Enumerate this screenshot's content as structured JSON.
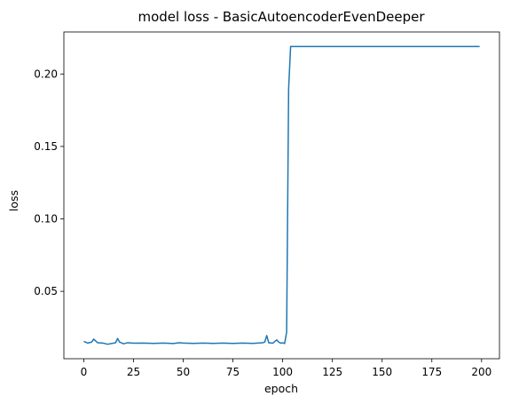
{
  "chart_data": {
    "type": "line",
    "title": "model loss - BasicAutoencoderEvenDeeper",
    "xlabel": "epoch",
    "ylabel": "loss",
    "xlim": [
      -10,
      209
    ],
    "ylim": [
      0.0035,
      0.229
    ],
    "x_ticks": [
      0,
      25,
      50,
      75,
      100,
      125,
      150,
      175,
      200
    ],
    "y_ticks": [
      0.05,
      0.1,
      0.15,
      0.2
    ],
    "y_tick_labels": [
      "0.05",
      "0.10",
      "0.15",
      "0.20"
    ],
    "grid": false,
    "legend": "none",
    "series": [
      {
        "color": "#1f77b4",
        "points": [
          [
            0,
            0.0155
          ],
          [
            2,
            0.0143
          ],
          [
            4,
            0.015
          ],
          [
            5,
            0.017
          ],
          [
            7,
            0.0145
          ],
          [
            10,
            0.0142
          ],
          [
            12,
            0.0135
          ],
          [
            14,
            0.014
          ],
          [
            16,
            0.0145
          ],
          [
            17,
            0.0175
          ],
          [
            18,
            0.015
          ],
          [
            20,
            0.0138
          ],
          [
            22,
            0.0145
          ],
          [
            25,
            0.0142
          ],
          [
            30,
            0.0143
          ],
          [
            35,
            0.0141
          ],
          [
            40,
            0.0143
          ],
          [
            45,
            0.014
          ],
          [
            48,
            0.0145
          ],
          [
            50,
            0.0143
          ],
          [
            55,
            0.0141
          ],
          [
            60,
            0.0143
          ],
          [
            65,
            0.0141
          ],
          [
            70,
            0.0143
          ],
          [
            75,
            0.0141
          ],
          [
            80,
            0.0143
          ],
          [
            85,
            0.0141
          ],
          [
            90,
            0.0145
          ],
          [
            91,
            0.015
          ],
          [
            92,
            0.0195
          ],
          [
            93,
            0.0145
          ],
          [
            95,
            0.0142
          ],
          [
            97,
            0.0165
          ],
          [
            98,
            0.015
          ],
          [
            99,
            0.0142
          ],
          [
            100,
            0.0145
          ],
          [
            101,
            0.014
          ],
          [
            102,
            0.022
          ],
          [
            103,
            0.19
          ],
          [
            104,
            0.219
          ],
          [
            120,
            0.219
          ],
          [
            150,
            0.219
          ],
          [
            175,
            0.219
          ],
          [
            199,
            0.219
          ]
        ]
      }
    ]
  }
}
